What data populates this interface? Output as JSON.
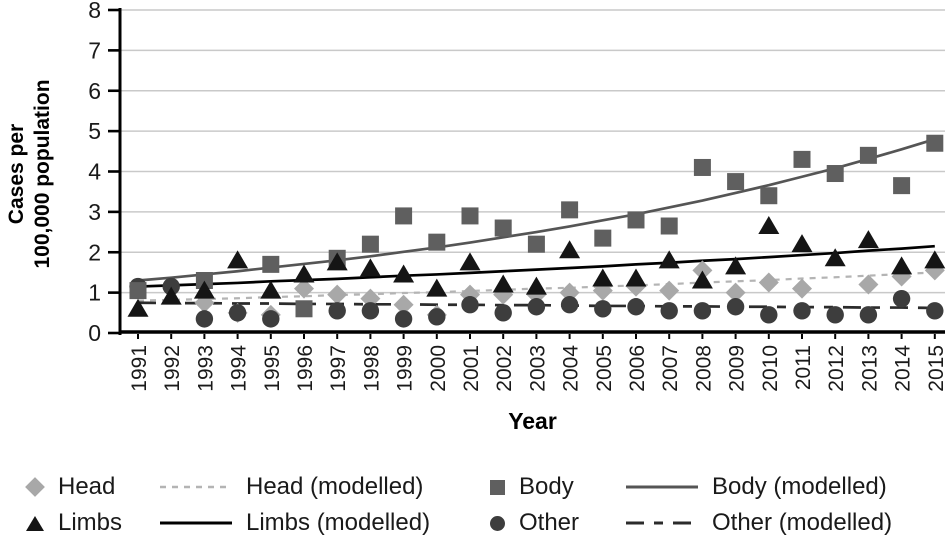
{
  "figure": {
    "y_axis": {
      "title_line1": "Cases per",
      "title_line2": "100,000 population",
      "min": 0,
      "max": 8,
      "tick_step": 1,
      "tick_labels": [
        "0",
        "1",
        "2",
        "3",
        "4",
        "5",
        "6",
        "7",
        "8"
      ]
    },
    "x_axis": {
      "title": "Year",
      "tick_labels": [
        "1991",
        "1992",
        "1993",
        "1994",
        "1995",
        "1996",
        "1997",
        "1998",
        "1999",
        "2000",
        "2001",
        "2002",
        "2003",
        "2004",
        "2005",
        "2006",
        "2007",
        "2008",
        "2009",
        "2010",
        "2011",
        "2012",
        "2013",
        "2014",
        "2015"
      ]
    },
    "grid_color": "#c9c9c9",
    "axis_color": "#000000",
    "text_color": "#1a1a1a"
  },
  "chart_data": {
    "type": "scatter",
    "title": "",
    "xlabel": "Year",
    "ylabel": "Cases per 100,000 population",
    "ylim": [
      0,
      8
    ],
    "grid": true,
    "legend_position": "bottom",
    "x": [
      1991,
      1992,
      1993,
      1994,
      1995,
      1996,
      1997,
      1998,
      1999,
      2000,
      2001,
      2002,
      2003,
      2004,
      2005,
      2006,
      2007,
      2008,
      2009,
      2010,
      2011,
      2012,
      2013,
      2014,
      2015
    ],
    "series": [
      {
        "name": "Head (modelled)",
        "kind": "line",
        "style": "short-dash",
        "color": "#b4b4b4",
        "values": [
          0.8,
          0.82,
          0.84,
          0.86,
          0.89,
          0.91,
          0.94,
          0.96,
          0.99,
          1.01,
          1.04,
          1.07,
          1.1,
          1.12,
          1.15,
          1.18,
          1.21,
          1.25,
          1.28,
          1.31,
          1.35,
          1.38,
          1.42,
          1.46,
          1.5
        ]
      },
      {
        "name": "Other (modelled)",
        "kind": "line",
        "style": "long-dash",
        "color": "#2b2b2b",
        "values": [
          0.75,
          0.74,
          0.74,
          0.73,
          0.73,
          0.72,
          0.72,
          0.71,
          0.71,
          0.7,
          0.7,
          0.69,
          0.69,
          0.68,
          0.67,
          0.67,
          0.66,
          0.66,
          0.65,
          0.65,
          0.64,
          0.64,
          0.63,
          0.63,
          0.62
        ]
      },
      {
        "name": "Body (modelled)",
        "kind": "line",
        "style": "solid",
        "color": "#555555",
        "values": [
          1.3,
          1.37,
          1.45,
          1.53,
          1.62,
          1.71,
          1.8,
          1.9,
          2.01,
          2.12,
          2.24,
          2.37,
          2.5,
          2.64,
          2.79,
          2.94,
          3.11,
          3.28,
          3.47,
          3.66,
          3.87,
          4.08,
          4.31,
          4.55,
          4.8
        ]
      },
      {
        "name": "Limbs (modelled)",
        "kind": "line",
        "style": "solid",
        "color": "#000000",
        "values": [
          1.15,
          1.18,
          1.21,
          1.24,
          1.28,
          1.31,
          1.34,
          1.38,
          1.42,
          1.45,
          1.49,
          1.53,
          1.57,
          1.61,
          1.65,
          1.7,
          1.74,
          1.79,
          1.83,
          1.88,
          1.93,
          1.98,
          2.04,
          2.09,
          2.15
        ]
      },
      {
        "name": "Head",
        "kind": "scatter",
        "marker": "diamond",
        "color": "#a8a8a8",
        "values": [
          null,
          null,
          0.75,
          0.5,
          0.45,
          1.1,
          0.95,
          0.85,
          0.7,
          0.45,
          0.95,
          0.95,
          0.95,
          1.0,
          1.05,
          1.15,
          1.05,
          1.55,
          1.0,
          1.25,
          1.1,
          null,
          1.2,
          1.4,
          1.55
        ]
      },
      {
        "name": "Other",
        "kind": "scatter",
        "marker": "circle",
        "color": "#3d3d3d",
        "values": [
          1.15,
          1.15,
          0.35,
          0.5,
          0.35,
          null,
          0.55,
          0.55,
          0.35,
          0.4,
          0.7,
          0.5,
          0.65,
          0.7,
          0.6,
          0.65,
          0.55,
          0.55,
          0.65,
          0.45,
          0.55,
          0.45,
          0.45,
          0.85,
          0.55
        ]
      },
      {
        "name": "Body",
        "kind": "scatter",
        "marker": "square",
        "color": "#5f5f5f",
        "values": [
          1.05,
          null,
          1.3,
          null,
          1.7,
          0.6,
          1.85,
          2.2,
          2.9,
          2.25,
          2.9,
          2.6,
          2.2,
          3.05,
          2.35,
          2.8,
          2.65,
          4.1,
          3.75,
          3.4,
          4.3,
          3.95,
          4.4,
          3.65,
          4.7
        ]
      },
      {
        "name": "Limbs",
        "kind": "scatter",
        "marker": "triangle",
        "color": "#151515",
        "values": [
          0.6,
          0.9,
          1.05,
          1.8,
          1.05,
          1.45,
          1.75,
          1.6,
          1.45,
          1.1,
          1.75,
          1.2,
          1.15,
          2.05,
          1.35,
          1.35,
          1.8,
          1.3,
          1.65,
          2.65,
          2.2,
          1.85,
          2.3,
          1.65,
          1.8
        ]
      }
    ]
  },
  "legend": {
    "rows": [
      [
        {
          "type": "marker",
          "shape": "diamond",
          "color": "#a8a8a8",
          "label": "Head"
        },
        {
          "type": "line",
          "style": "short-dash",
          "color": "#b4b4b4",
          "label": "Head (modelled)"
        },
        {
          "type": "marker",
          "shape": "square",
          "color": "#5f5f5f",
          "label": "Body"
        },
        {
          "type": "line",
          "style": "solid",
          "color": "#555555",
          "label": "Body (modelled)"
        }
      ],
      [
        {
          "type": "marker",
          "shape": "triangle",
          "color": "#151515",
          "label": "Limbs"
        },
        {
          "type": "line",
          "style": "solid",
          "color": "#000000",
          "label": "Limbs (modelled)"
        },
        {
          "type": "marker",
          "shape": "circle",
          "color": "#3d3d3d",
          "label": "Other"
        },
        {
          "type": "line",
          "style": "long-dash",
          "color": "#2b2b2b",
          "label": "Other (modelled)"
        }
      ]
    ]
  }
}
